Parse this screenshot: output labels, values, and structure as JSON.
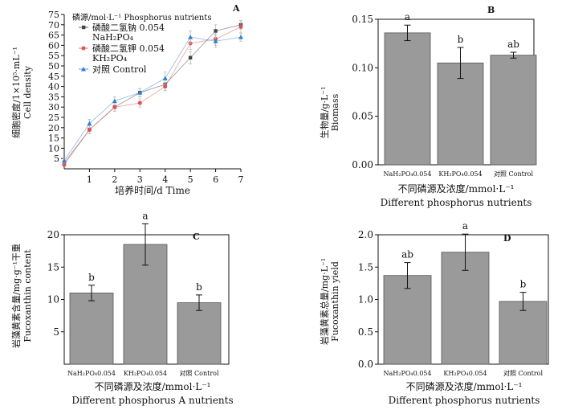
{
  "chart_data": [
    {
      "panel": "A",
      "type": "line",
      "legend_title": "磷源/mol·L⁻¹ Phosphorus nutrients",
      "ylabel": "细胞密度/1×10⁵·mL⁻¹",
      "ylabel_en": "Cell density",
      "xlabel": "培养时间/d Time",
      "ylim": [
        0,
        75
      ],
      "yticks": [
        5,
        10,
        15,
        20,
        25,
        30,
        35,
        40,
        45,
        50,
        55,
        60,
        65,
        70,
        75
      ],
      "xlim": [
        0,
        7
      ],
      "xticks": [
        1,
        2,
        3,
        4,
        5,
        6,
        7
      ],
      "x": [
        0,
        1,
        2,
        3,
        4,
        5,
        6,
        7
      ],
      "series": [
        {
          "name": "磷酸二氢钠 0.054",
          "name2": "NaH₂PO₄",
          "color": "#444444",
          "marker": "square",
          "values": [
            3,
            19,
            30,
            37,
            41,
            54,
            67,
            70
          ],
          "errors": [
            1,
            2,
            2,
            2,
            3,
            3,
            3,
            2
          ]
        },
        {
          "name": "磷酸二氢钾 0.054",
          "name2": "KH₂PO₄",
          "color": "#e05050",
          "marker": "circle",
          "values": [
            2,
            19,
            30,
            32,
            40,
            61,
            63,
            69
          ],
          "errors": [
            1,
            2,
            2,
            2,
            2,
            3,
            3,
            3
          ]
        },
        {
          "name": "对照 Control",
          "name2": "",
          "color": "#2f7fd4",
          "marker": "triangle",
          "values": [
            4,
            22,
            33,
            37,
            44,
            64,
            62,
            64
          ],
          "errors": [
            1,
            2,
            2,
            2,
            3,
            3,
            3,
            2
          ]
        }
      ]
    },
    {
      "panel": "B",
      "type": "bar",
      "ylabel": "生物量/g·L⁻¹",
      "ylabel_en": "Biomass",
      "xlabel": "不同磷源及浓度/mmol·L⁻¹",
      "xlabel_en": "Different phosphorus  nutrients",
      "ylim": [
        0,
        0.15
      ],
      "yticks": [
        "0.00",
        "0.05",
        "0.10",
        "0.15"
      ],
      "ytick_values": [
        0,
        0.05,
        0.1,
        0.15
      ],
      "categories": [
        "NaH₂PO₄0.054",
        "KH₂PO₄0.054",
        "对照 Control"
      ],
      "values": [
        0.136,
        0.105,
        0.113
      ],
      "errors": [
        0.008,
        0.016,
        0.003
      ],
      "sig": [
        "a",
        "b",
        "ab"
      ]
    },
    {
      "panel": "C",
      "type": "bar",
      "ylabel": "岩藻黄素含量/mg·g⁻¹干重",
      "ylabel_en": "Fucoxanthin content",
      "xlabel": "不同磷源及浓度/mmol·L⁻¹",
      "xlabel_en": "Different phosphorus  A   nutrients",
      "ylim": [
        0,
        20
      ],
      "yticks": [
        "5",
        "10",
        "15",
        "20"
      ],
      "ytick_values": [
        5,
        10,
        15,
        20
      ],
      "categories": [
        "NaH₂PO₄0.054",
        "KH₂PO₄0.054",
        "对照 Control"
      ],
      "values": [
        11.0,
        18.5,
        9.5
      ],
      "errors": [
        1.2,
        3.2,
        1.2
      ],
      "sig": [
        "b",
        "a",
        "b"
      ]
    },
    {
      "panel": "D",
      "type": "bar",
      "ylabel": "岩藻黄素总量/mg·L⁻¹",
      "ylabel_en": "Fucoxanthin yield",
      "xlabel": "不同磷源及浓度/mmol·L⁻¹",
      "xlabel_en": "Different phosphorus  nutrients",
      "ylim": [
        0,
        2.0
      ],
      "yticks": [
        "0.0",
        "0.5",
        "1.0",
        "1.5",
        "2.0"
      ],
      "ytick_values": [
        0,
        0.5,
        1.0,
        1.5,
        2.0
      ],
      "categories": [
        "NaH₂PO₄0.054",
        "KH₂PO₄0.054",
        "对照 Control"
      ],
      "values": [
        1.37,
        1.73,
        0.97
      ],
      "errors": [
        0.2,
        0.28,
        0.14
      ],
      "sig": [
        "ab",
        "a",
        "b"
      ]
    }
  ]
}
